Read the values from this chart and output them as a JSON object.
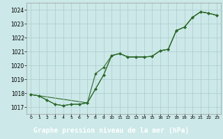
{
  "background_color": "#cce8e8",
  "grid_color": "#aacccc",
  "line_color": "#2d6a2d",
  "marker_color": "#2d6a2d",
  "xlabel": "Graphe pression niveau de la mer (hPa)",
  "xlabel_fontsize": 7,
  "xlim": [
    -0.5,
    23.5
  ],
  "ylim": [
    1016.5,
    1024.5
  ],
  "yticks": [
    1017,
    1018,
    1019,
    1020,
    1021,
    1022,
    1023,
    1024
  ],
  "xticks": [
    0,
    1,
    2,
    3,
    4,
    5,
    6,
    7,
    8,
    9,
    10,
    11,
    12,
    13,
    14,
    15,
    16,
    17,
    18,
    19,
    20,
    21,
    22,
    23
  ],
  "series1_x": [
    0,
    1,
    2,
    3,
    4,
    5,
    6,
    7,
    8,
    9,
    10,
    11,
    12,
    13,
    14,
    15,
    16,
    17,
    18,
    19,
    20,
    21,
    22,
    23
  ],
  "series1_y": [
    1017.9,
    1017.8,
    1017.5,
    1017.2,
    1017.1,
    1017.2,
    1017.2,
    1017.3,
    1018.3,
    1019.3,
    1020.7,
    1020.85,
    1020.6,
    1020.6,
    1020.6,
    1020.65,
    1021.05,
    1021.15,
    1022.5,
    1022.75,
    1023.45,
    1023.85,
    1023.75,
    1023.6
  ],
  "series2_x": [
    0,
    1,
    2,
    3,
    4,
    5,
    6,
    7,
    8,
    9,
    10,
    11,
    12,
    13,
    14,
    15,
    16,
    17,
    18,
    19,
    20,
    21,
    22,
    23
  ],
  "series2_y": [
    1017.9,
    1017.8,
    1017.5,
    1017.2,
    1017.1,
    1017.2,
    1017.2,
    1017.3,
    1019.4,
    1019.85,
    1020.7,
    1020.85,
    1020.6,
    1020.6,
    1020.6,
    1020.65,
    1021.05,
    1021.15,
    1022.5,
    1022.75,
    1023.45,
    1023.85,
    1023.75,
    1023.6
  ],
  "series3_x": [
    0,
    7,
    8,
    9,
    10,
    11,
    12,
    13,
    14,
    15,
    16,
    17,
    18,
    19,
    20,
    21,
    22,
    23
  ],
  "series3_y": [
    1017.9,
    1017.3,
    1018.3,
    1019.3,
    1020.7,
    1020.85,
    1020.6,
    1020.6,
    1020.6,
    1020.65,
    1021.05,
    1021.15,
    1022.5,
    1022.75,
    1023.45,
    1023.85,
    1023.75,
    1023.6
  ]
}
